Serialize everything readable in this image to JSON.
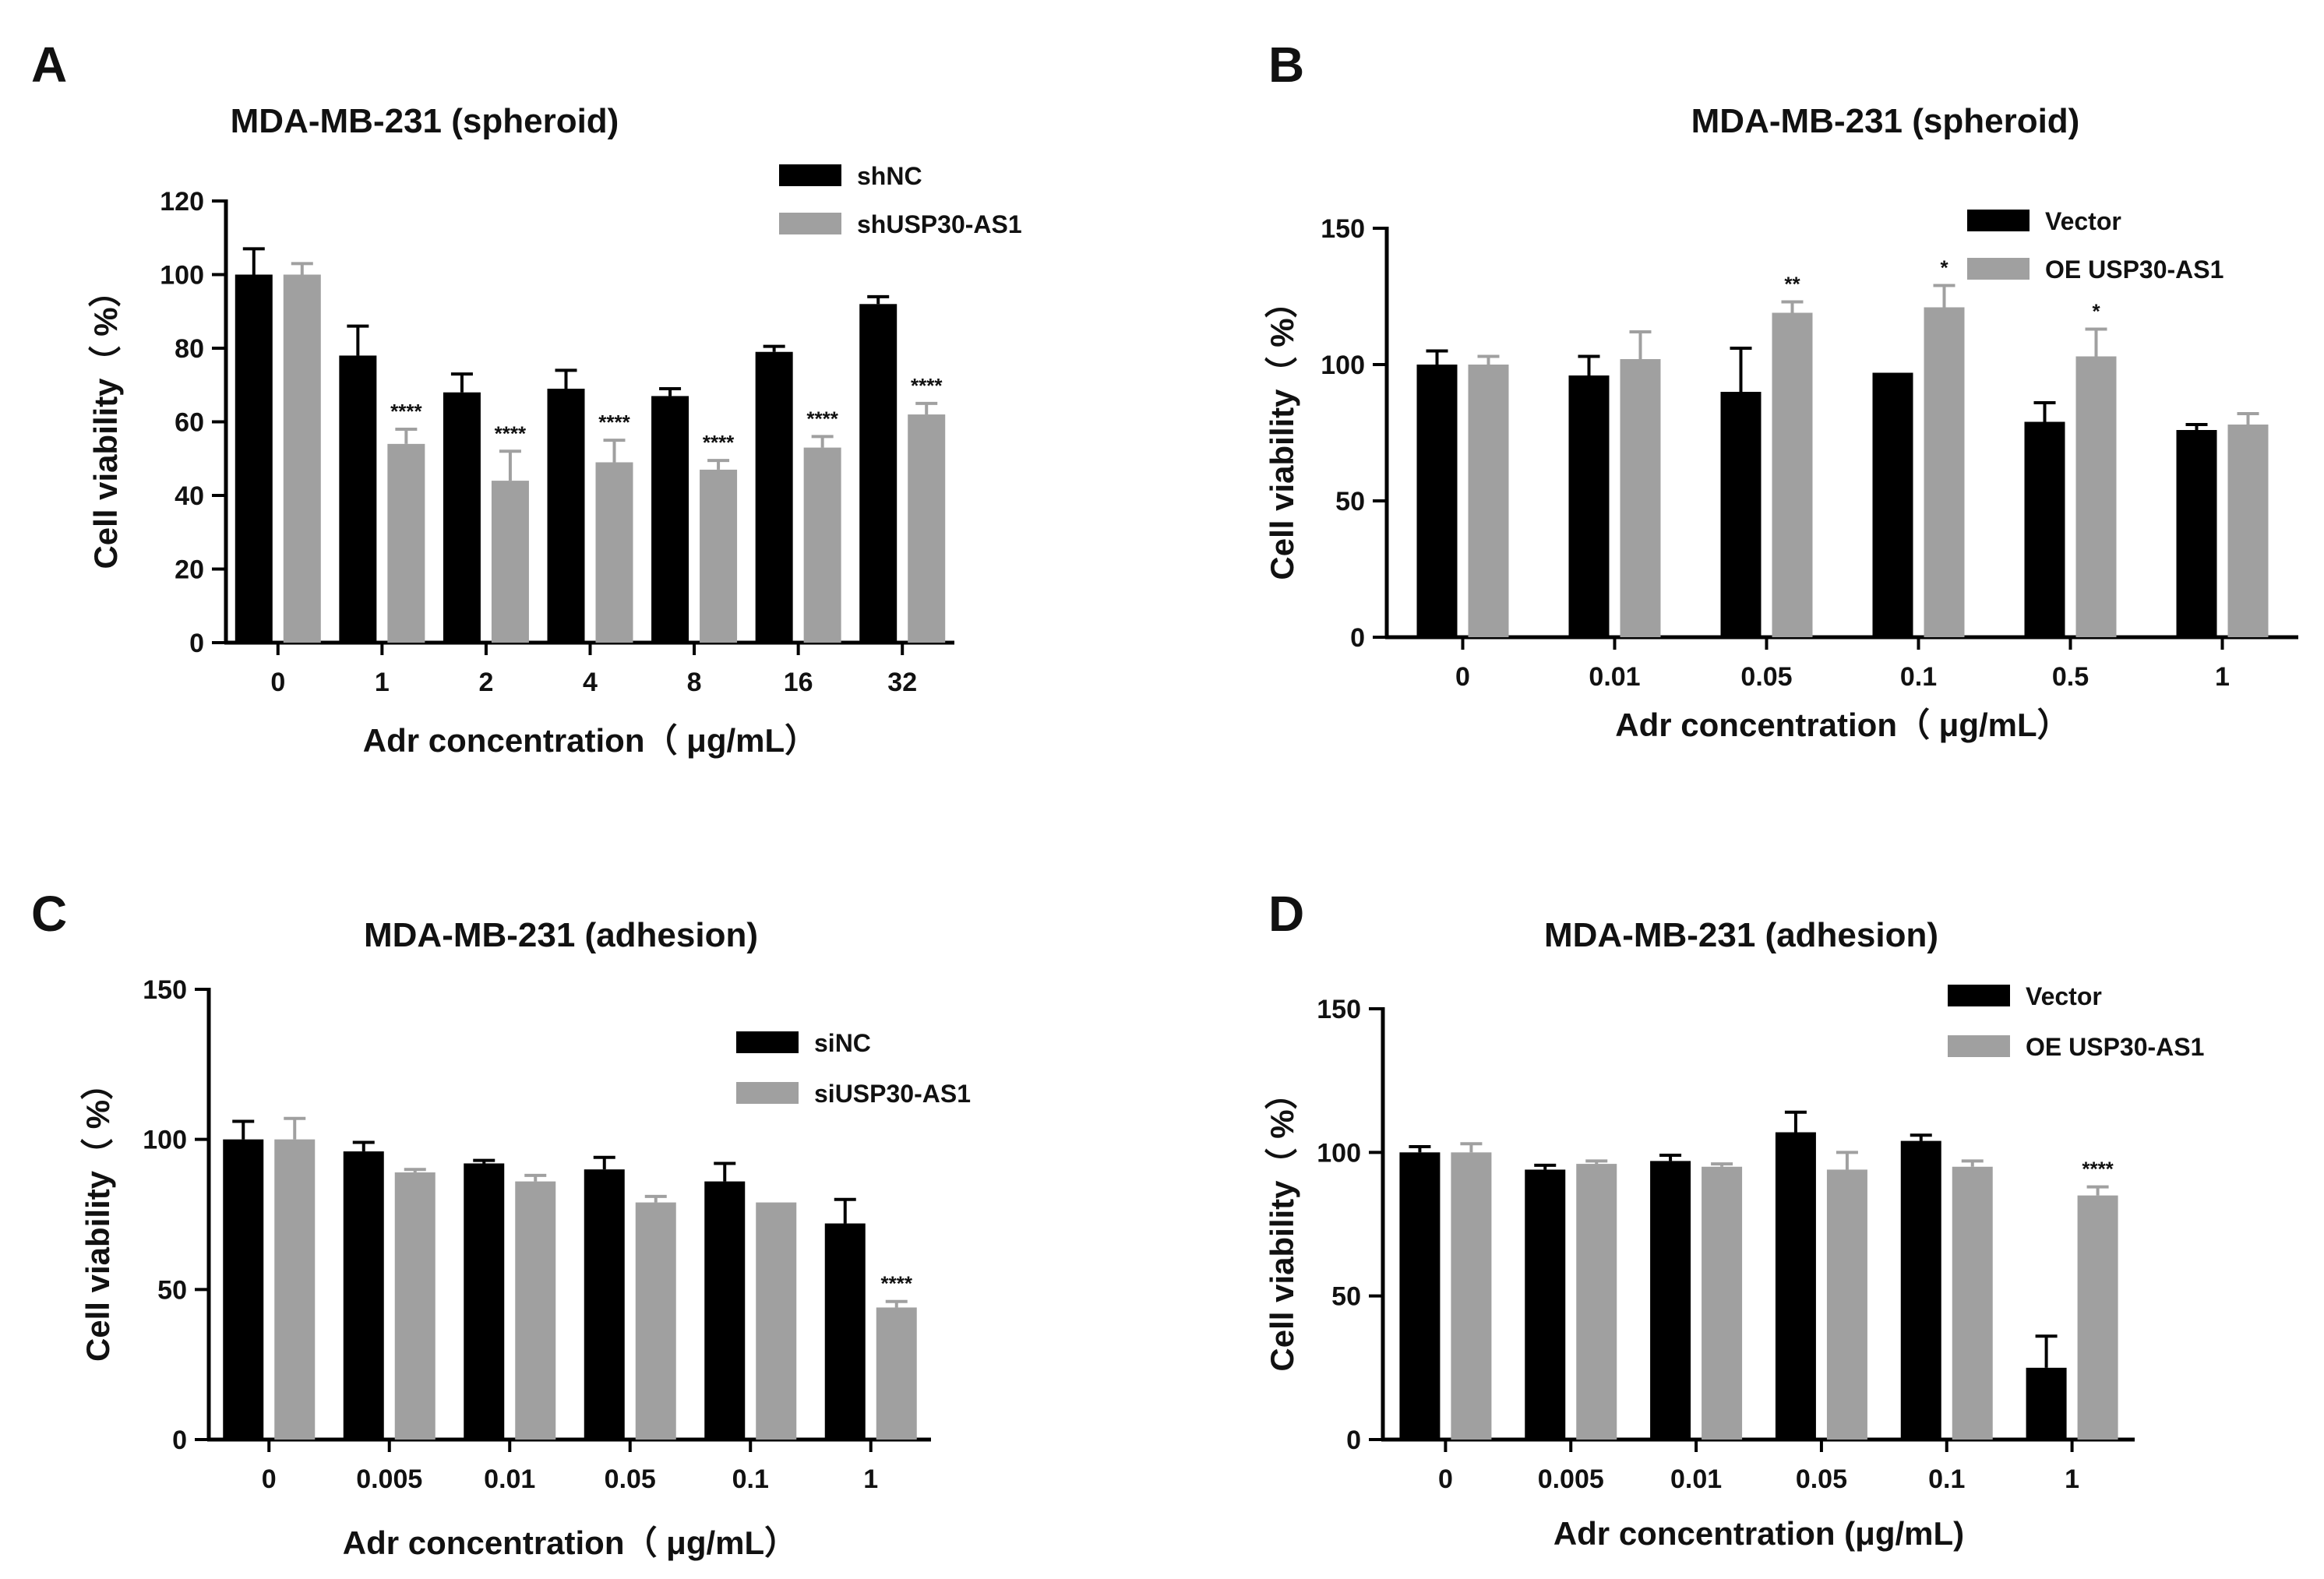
{
  "figure": {
    "panels": [
      "A",
      "B",
      "C",
      "D"
    ]
  },
  "colors": {
    "black_series": "#000000",
    "gray_series": "#a0a0a0",
    "axis": "#000000",
    "text": "#111111"
  },
  "chart_data": [
    {
      "panel": "A",
      "type": "bar",
      "title": "MDA-MB-231 (spheroid)",
      "xlabel": "Adr concentration（ μg/mL）",
      "ylabel": "Cell viability（ %）",
      "ylim": [
        0,
        120
      ],
      "yticks": [
        0,
        20,
        40,
        60,
        80,
        100,
        120
      ],
      "categories": [
        "0",
        "1",
        "2",
        "4",
        "8",
        "16",
        "32"
      ],
      "legend_position": "top-right",
      "series": [
        {
          "name": "shNC",
          "color": "#000000",
          "values": [
            100,
            78,
            68,
            69,
            67,
            79,
            92
          ],
          "errors": [
            7,
            8,
            5,
            5,
            2,
            1.5,
            2
          ]
        },
        {
          "name": "shUSP30-AS1",
          "color": "#a0a0a0",
          "values": [
            100,
            54,
            44,
            49,
            47,
            53,
            62
          ],
          "errors": [
            3,
            4,
            8,
            6,
            2.5,
            3,
            3
          ]
        }
      ],
      "significance": [
        "",
        "****",
        "****",
        "****",
        "****",
        "****",
        "****"
      ]
    },
    {
      "panel": "B",
      "type": "bar",
      "title": "MDA-MB-231 (spheroid)",
      "xlabel": "Adr concentration（ μg/mL）",
      "ylabel": "Cell viability（ %）",
      "ylim": [
        0,
        150
      ],
      "yticks": [
        0,
        50,
        100,
        150
      ],
      "categories": [
        "0",
        "0.01",
        "0.05",
        "0.1",
        "0.5",
        "1"
      ],
      "legend_position": "top-right",
      "series": [
        {
          "name": "Vector",
          "color": "#000000",
          "values": [
            100,
            96,
            90,
            97,
            79,
            76
          ],
          "errors": [
            5,
            7,
            16,
            0,
            7,
            2
          ]
        },
        {
          "name": "OE USP30-AS1",
          "color": "#a0a0a0",
          "values": [
            100,
            102,
            119,
            121,
            103,
            78
          ],
          "errors": [
            3,
            10,
            4,
            8,
            10,
            4
          ]
        }
      ],
      "significance": [
        "",
        "",
        "**",
        "*",
        "*",
        ""
      ]
    },
    {
      "panel": "C",
      "type": "bar",
      "title": "MDA-MB-231 (adhesion)",
      "xlabel": "Adr concentration（ μg/mL）",
      "ylabel": "Cell viability（ %）",
      "ylim": [
        0,
        150
      ],
      "yticks": [
        0,
        50,
        100,
        150
      ],
      "categories": [
        "0",
        "0.005",
        "0.01",
        "0.05",
        "0.1",
        "1"
      ],
      "legend_position": "top-right",
      "series": [
        {
          "name": "siNC",
          "color": "#000000",
          "values": [
            100,
            96,
            92,
            90,
            86,
            72
          ],
          "errors": [
            6,
            3,
            1,
            4,
            6,
            8
          ]
        },
        {
          "name": "siUSP30-AS1",
          "color": "#a0a0a0",
          "values": [
            100,
            89,
            86,
            79,
            79,
            44
          ],
          "errors": [
            7,
            1,
            2,
            2,
            0,
            2
          ]
        }
      ],
      "significance": [
        "",
        "",
        "",
        "",
        "",
        "****"
      ]
    },
    {
      "panel": "D",
      "type": "bar",
      "title": "MDA-MB-231 (adhesion)",
      "xlabel": "Adr concentration (μg/mL)",
      "ylabel": "Cell viability（ %）",
      "ylim": [
        0,
        150
      ],
      "yticks": [
        0,
        50,
        100,
        150
      ],
      "categories": [
        "0",
        "0.005",
        "0.01",
        "0.05",
        "0.1",
        "1"
      ],
      "legend_position": "top-right",
      "series": [
        {
          "name": "Vector",
          "color": "#000000",
          "values": [
            100,
            94,
            97,
            107,
            104,
            25
          ],
          "errors": [
            2,
            1.5,
            2,
            7,
            2,
            11
          ]
        },
        {
          "name": "OE USP30-AS1",
          "color": "#a0a0a0",
          "values": [
            100,
            96,
            95,
            94,
            95,
            85
          ],
          "errors": [
            3,
            1,
            1,
            6,
            2,
            3
          ]
        }
      ],
      "significance": [
        "",
        "",
        "",
        "",
        "",
        "****"
      ]
    }
  ]
}
